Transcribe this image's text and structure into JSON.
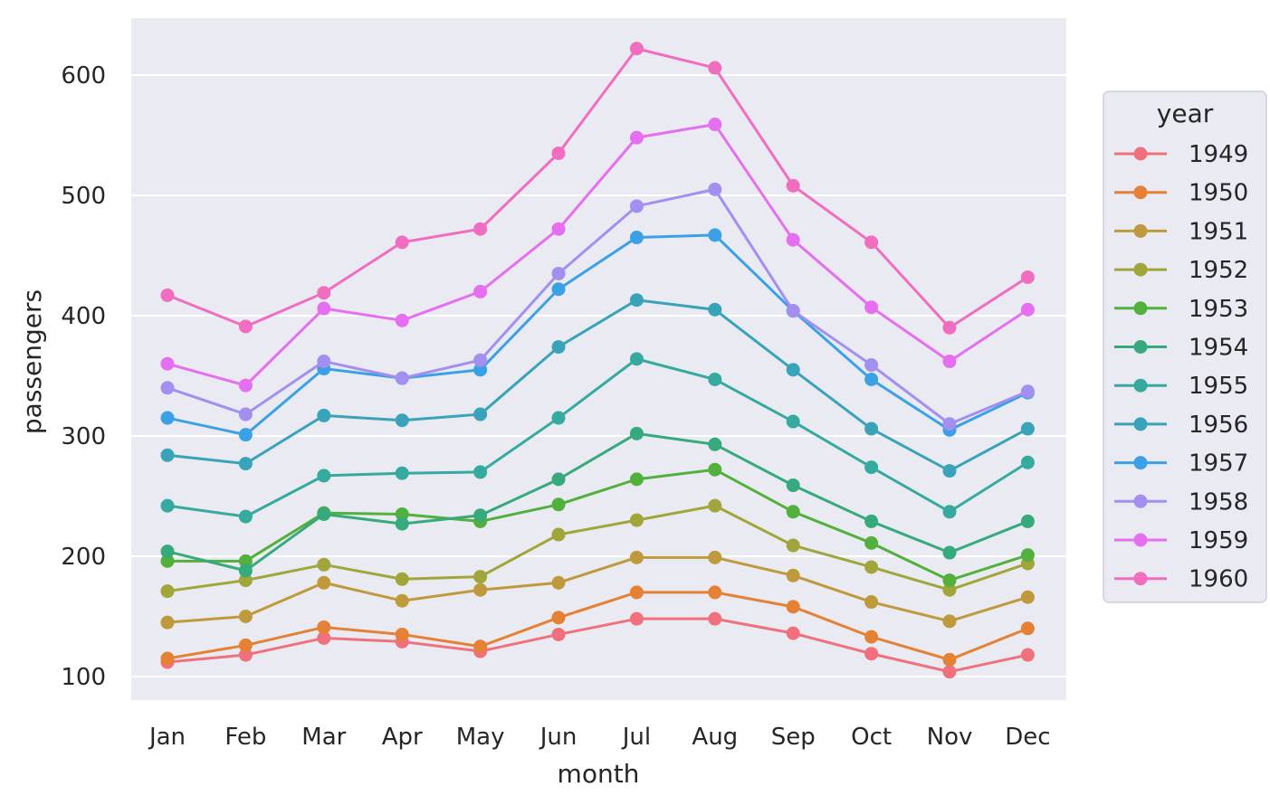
{
  "chart_data": {
    "type": "line",
    "title": "",
    "xlabel": "month",
    "ylabel": "passengers",
    "categories": [
      "Jan",
      "Feb",
      "Mar",
      "Apr",
      "May",
      "Jun",
      "Jul",
      "Aug",
      "Sep",
      "Oct",
      "Nov",
      "Dec"
    ],
    "ylim": [
      80,
      647
    ],
    "yticks": [
      100,
      200,
      300,
      400,
      500,
      600
    ],
    "grid": true,
    "legend_title": "year",
    "legend_position": "right",
    "series": [
      {
        "name": "1949",
        "color": "#f0717d",
        "values": [
          112,
          118,
          132,
          129,
          121,
          135,
          148,
          148,
          136,
          119,
          104,
          118
        ]
      },
      {
        "name": "1950",
        "color": "#e58135",
        "values": [
          115,
          126,
          141,
          135,
          125,
          149,
          170,
          170,
          158,
          133,
          114,
          140
        ]
      },
      {
        "name": "1951",
        "color": "#bf9a3c",
        "values": [
          145,
          150,
          178,
          163,
          172,
          178,
          199,
          199,
          184,
          162,
          146,
          166
        ]
      },
      {
        "name": "1952",
        "color": "#a0a63a",
        "values": [
          171,
          180,
          193,
          181,
          183,
          218,
          230,
          242,
          209,
          191,
          172,
          194
        ]
      },
      {
        "name": "1953",
        "color": "#52b03c",
        "values": [
          196,
          196,
          236,
          235,
          229,
          243,
          264,
          272,
          237,
          211,
          180,
          201
        ]
      },
      {
        "name": "1954",
        "color": "#36aa7c",
        "values": [
          204,
          188,
          235,
          227,
          234,
          264,
          302,
          293,
          259,
          229,
          203,
          229
        ]
      },
      {
        "name": "1955",
        "color": "#36aa9e",
        "values": [
          242,
          233,
          267,
          269,
          270,
          315,
          364,
          347,
          312,
          274,
          237,
          278
        ]
      },
      {
        "name": "1956",
        "color": "#38a3b9",
        "values": [
          284,
          277,
          317,
          313,
          318,
          374,
          413,
          405,
          355,
          306,
          271,
          306
        ]
      },
      {
        "name": "1957",
        "color": "#3ba1e6",
        "values": [
          315,
          301,
          356,
          348,
          355,
          422,
          465,
          467,
          404,
          347,
          305,
          336
        ]
      },
      {
        "name": "1958",
        "color": "#a38ff0",
        "values": [
          340,
          318,
          362,
          348,
          363,
          435,
          491,
          505,
          404,
          359,
          310,
          337
        ]
      },
      {
        "name": "1959",
        "color": "#e56ff0",
        "values": [
          360,
          342,
          406,
          396,
          420,
          472,
          548,
          559,
          463,
          407,
          362,
          405
        ]
      },
      {
        "name": "1960",
        "color": "#f16dc0",
        "values": [
          417,
          391,
          419,
          461,
          472,
          535,
          622,
          606,
          508,
          461,
          390,
          432
        ]
      }
    ]
  }
}
